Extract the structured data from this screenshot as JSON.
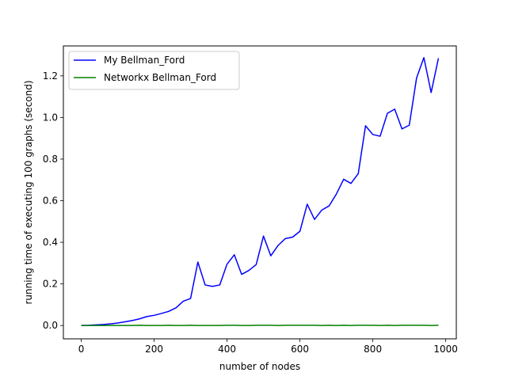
{
  "chart_data": {
    "type": "line",
    "title": "",
    "xlabel": "number of nodes",
    "ylabel": "running time of executing 100 graphs (second)",
    "xlim": [
      -49,
      1029
    ],
    "ylim": [
      -0.064,
      1.344
    ],
    "xticks": [
      0,
      200,
      400,
      600,
      800,
      1000
    ],
    "xtick_labels": [
      "0",
      "200",
      "400",
      "600",
      "800",
      "1000"
    ],
    "yticks": [
      0.0,
      0.2,
      0.4,
      0.6,
      0.8,
      1.0,
      1.2
    ],
    "ytick_labels": [
      "0.0",
      "0.2",
      "0.4",
      "0.6",
      "0.8",
      "1.0",
      "1.2"
    ],
    "grid": false,
    "legend_position": "top-left",
    "x": [
      0,
      20,
      40,
      60,
      80,
      100,
      120,
      140,
      160,
      180,
      200,
      220,
      240,
      260,
      280,
      300,
      320,
      340,
      360,
      380,
      400,
      420,
      440,
      460,
      480,
      500,
      520,
      540,
      560,
      580,
      600,
      620,
      640,
      660,
      680,
      700,
      720,
      740,
      760,
      780,
      800,
      820,
      840,
      860,
      880,
      900,
      920,
      940,
      960,
      980
    ],
    "series": [
      {
        "name": "My Bellman_Ford",
        "color": "#0000ff",
        "values": [
          0.0,
          0.001,
          0.003,
          0.005,
          0.008,
          0.012,
          0.018,
          0.024,
          0.032,
          0.043,
          0.049,
          0.058,
          0.068,
          0.085,
          0.117,
          0.13,
          0.305,
          0.195,
          0.188,
          0.195,
          0.295,
          0.34,
          0.246,
          0.265,
          0.293,
          0.43,
          0.335,
          0.385,
          0.418,
          0.425,
          0.453,
          0.583,
          0.51,
          0.555,
          0.575,
          0.632,
          0.703,
          0.683,
          0.73,
          0.96,
          0.918,
          0.91,
          1.02,
          1.04,
          0.945,
          0.963,
          1.19,
          1.288,
          1.12,
          1.285
        ]
      },
      {
        "name": "Networkx Bellman_Ford",
        "color": "#008000",
        "values": [
          0.0,
          0.0,
          0.0,
          0.0,
          0.0,
          0.0,
          0.0,
          0.0,
          0.001,
          0.0,
          0.0,
          0.0,
          0.001,
          0.0,
          0.0,
          0.001,
          0.0,
          0.0,
          0.0,
          0.0,
          0.001,
          0.001,
          0.0,
          0.0,
          0.001,
          0.001,
          0.001,
          0.0,
          0.001,
          0.001,
          0.001,
          0.001,
          0.001,
          0.0,
          0.001,
          0.0,
          0.001,
          0.0,
          0.001,
          0.001,
          0.001,
          0.0,
          0.001,
          0.0,
          0.001,
          0.001,
          0.001,
          0.001,
          0.0,
          0.001
        ]
      }
    ]
  }
}
